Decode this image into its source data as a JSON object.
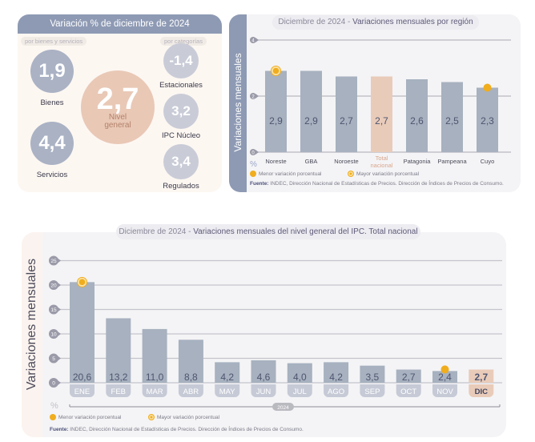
{
  "summary": {
    "title": "Variación % de diciembre de 2024",
    "chip_left": "por bienes y servicios",
    "chip_right": "por categorías",
    "general": {
      "value": "2,7",
      "label_line1": "Nivel",
      "label_line2": "general"
    },
    "goods": {
      "value": "1,9",
      "label": "Bienes"
    },
    "services": {
      "value": "4,4",
      "label": "Servicios"
    },
    "seasonal": {
      "value": "-1,4",
      "label": "Estacionales"
    },
    "core": {
      "value": "3,2",
      "label": "IPC Núcleo"
    },
    "regulated": {
      "value": "3,4",
      "label": "Regulados"
    }
  },
  "colors": {
    "bar": "#a7b1bf",
    "highlight": "#e9cbb9",
    "marker": "#f0ad1e",
    "header": "#8e9ab4"
  },
  "legend": {
    "min": "Menor variación porcentual",
    "max": "Mayor variación porcentual"
  },
  "source": {
    "label": "Fuente:",
    "text": " INDEC, Dirección Nacional de Estadísticas de Precios. Dirección de Índices de Precios de Consumo."
  },
  "chart_data": [
    {
      "type": "bar",
      "title_prefix": "Diciembre de 2024 - ",
      "title": "Variaciones mensuales por región",
      "ylabel": "Variaciones  mensuales",
      "yunit": "%",
      "ylim": [
        0,
        4
      ],
      "yticks": [
        0,
        2,
        4
      ],
      "categories": [
        "Noreste",
        "GBA",
        "Noroeste",
        "Total nacional",
        "Patagonia",
        "Pampeana",
        "Cuyo"
      ],
      "values": [
        2.9,
        2.9,
        2.7,
        2.7,
        2.6,
        2.5,
        2.3
      ],
      "value_labels": [
        "2,9",
        "2,9",
        "2,7",
        "2,7",
        "2,6",
        "2,5",
        "2,3"
      ],
      "highlight_index": 3,
      "max_marker_index": 0,
      "min_marker_index": 6,
      "grid": true
    },
    {
      "type": "bar",
      "title_prefix": "Diciembre de 2024 - ",
      "title": "Variaciones mensuales del nivel general del IPC. Total nacional",
      "ylabel": "Variaciones mensuales",
      "yunit": "%",
      "ylim": [
        0,
        25
      ],
      "yticks": [
        0,
        5,
        10,
        15,
        20,
        25
      ],
      "categories": [
        "ENE",
        "FEB",
        "MAR",
        "ABR",
        "MAY",
        "JUN",
        "JUL",
        "AGO",
        "SEP",
        "OCT",
        "NOV",
        "DIC"
      ],
      "values": [
        20.6,
        13.2,
        11.0,
        8.8,
        4.2,
        4.6,
        4.0,
        4.2,
        3.5,
        2.7,
        2.4,
        2.7
      ],
      "value_labels": [
        "20,6",
        "13,2",
        "11,0",
        "8,8",
        "4,2",
        "4,6",
        "4,0",
        "4,2",
        "3,5",
        "2,7",
        "2,4",
        "2,7"
      ],
      "year_label": "2024",
      "highlight_index": 11,
      "max_marker_index": 0,
      "min_marker_index": 10,
      "grid": true
    }
  ]
}
